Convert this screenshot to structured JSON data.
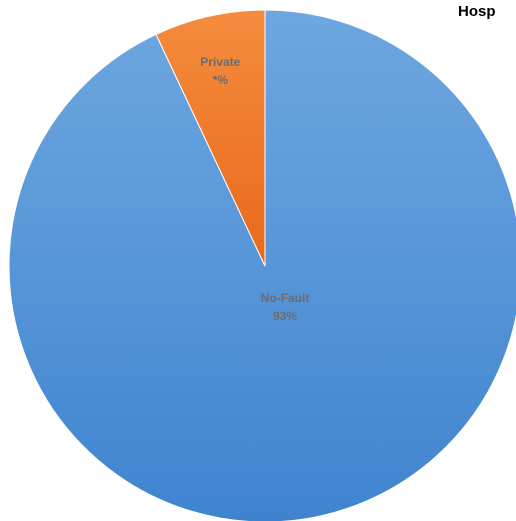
{
  "chart_data": {
    "type": "pie",
    "title": "Hosp",
    "slices": [
      {
        "name": "No-Fault",
        "value": 93,
        "label": "93%",
        "color": "#4e8fd6"
      },
      {
        "name": "Private",
        "value": 7,
        "label": "*%",
        "color": "#f07a25"
      }
    ],
    "legend": "none",
    "label_color": "#6d6d6d"
  }
}
